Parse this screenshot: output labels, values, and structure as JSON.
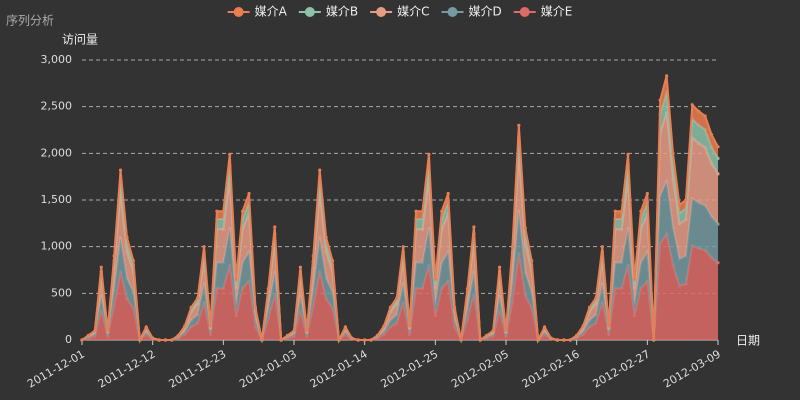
{
  "chart_data": {
    "type": "stacked-area",
    "title": "序列分析",
    "y_label": "访问量",
    "x_label": "日期",
    "categories": [
      "2011-12-01",
      null,
      null,
      null,
      null,
      null,
      null,
      null,
      null,
      null,
      null,
      "2011-12-12",
      null,
      null,
      null,
      null,
      null,
      null,
      null,
      null,
      null,
      null,
      "2011-12-23",
      null,
      null,
      null,
      null,
      null,
      null,
      null,
      null,
      null,
      null,
      "2012-01-03",
      null,
      null,
      null,
      null,
      null,
      null,
      null,
      null,
      null,
      null,
      "2012-01-14",
      null,
      null,
      null,
      null,
      null,
      null,
      null,
      null,
      null,
      null,
      "2012-01-25",
      null,
      null,
      null,
      null,
      null,
      null,
      null,
      null,
      null,
      null,
      "2012-02-05",
      null,
      null,
      null,
      null,
      null,
      null,
      null,
      null,
      null,
      null,
      "2012-02-16",
      null,
      null,
      null,
      null,
      null,
      null,
      null,
      null,
      null,
      null,
      "2012-02-27",
      null,
      null,
      null,
      null,
      null,
      null,
      null,
      null,
      null,
      null,
      "2012-03-09"
    ],
    "series": [
      {
        "name": "媒介A",
        "color": "#ea7e53",
        "values": [
          0,
          3,
          6,
          47,
          6,
          54,
          109,
          66,
          51,
          0,
          8,
          1,
          0,
          0,
          0,
          3,
          9,
          21,
          27,
          60,
          9,
          83,
          83,
          119,
          39,
          83,
          94,
          21,
          0,
          33,
          73,
          0,
          3,
          6,
          47,
          6,
          54,
          109,
          66,
          51,
          0,
          8,
          1,
          0,
          0,
          0,
          3,
          9,
          21,
          27,
          60,
          9,
          83,
          83,
          119,
          39,
          83,
          94,
          21,
          0,
          33,
          73,
          0,
          3,
          6,
          47,
          6,
          60,
          138,
          72,
          51,
          0,
          8,
          1,
          0,
          0,
          0,
          3,
          9,
          21,
          27,
          60,
          9,
          83,
          83,
          119,
          39,
          83,
          94,
          0,
          154,
          170,
          120,
          87,
          90,
          151,
          147,
          144,
          132,
          124
        ]
      },
      {
        "name": "媒介B",
        "color": "#8dc1a9",
        "values": [
          0,
          4,
          8,
          62,
          8,
          72,
          146,
          88,
          68,
          0,
          11,
          2,
          0,
          0,
          0,
          4,
          12,
          28,
          36,
          80,
          12,
          110,
          110,
          159,
          52,
          110,
          126,
          28,
          0,
          44,
          97,
          0,
          4,
          8,
          62,
          8,
          72,
          146,
          88,
          68,
          0,
          11,
          2,
          0,
          0,
          0,
          4,
          12,
          28,
          36,
          80,
          12,
          110,
          110,
          159,
          52,
          110,
          126,
          28,
          0,
          44,
          97,
          0,
          4,
          8,
          62,
          8,
          80,
          184,
          96,
          68,
          0,
          11,
          2,
          0,
          0,
          0,
          4,
          12,
          28,
          36,
          80,
          12,
          110,
          110,
          159,
          52,
          110,
          126,
          0,
          206,
          226,
          160,
          116,
          120,
          202,
          196,
          192,
          176,
          166
        ]
      },
      {
        "name": "媒介C",
        "color": "#e69d87",
        "values": [
          0,
          13,
          26,
          203,
          26,
          234,
          473,
          286,
          221,
          0,
          36,
          5,
          0,
          0,
          0,
          13,
          39,
          91,
          117,
          260,
          39,
          359,
          359,
          517,
          169,
          359,
          408,
          91,
          0,
          143,
          315,
          0,
          13,
          26,
          203,
          26,
          234,
          473,
          286,
          221,
          0,
          36,
          5,
          0,
          0,
          0,
          13,
          39,
          91,
          117,
          260,
          39,
          359,
          359,
          517,
          169,
          359,
          408,
          91,
          0,
          143,
          315,
          0,
          13,
          26,
          203,
          26,
          260,
          598,
          312,
          221,
          0,
          36,
          5,
          0,
          0,
          0,
          13,
          39,
          91,
          117,
          260,
          39,
          359,
          359,
          517,
          169,
          359,
          408,
          0,
          668,
          736,
          520,
          377,
          390,
          655,
          637,
          624,
          572,
          538
        ]
      },
      {
        "name": "媒介D",
        "color": "#759aa0",
        "values": [
          0,
          10,
          20,
          156,
          20,
          180,
          364,
          220,
          170,
          0,
          28,
          4,
          0,
          0,
          0,
          10,
          30,
          70,
          90,
          200,
          30,
          276,
          276,
          398,
          130,
          276,
          314,
          70,
          0,
          110,
          242,
          0,
          10,
          20,
          156,
          20,
          180,
          364,
          220,
          170,
          0,
          28,
          4,
          0,
          0,
          0,
          10,
          30,
          70,
          90,
          200,
          30,
          276,
          276,
          398,
          130,
          276,
          314,
          70,
          0,
          110,
          242,
          0,
          10,
          20,
          156,
          20,
          200,
          460,
          240,
          170,
          0,
          28,
          4,
          0,
          0,
          0,
          10,
          30,
          70,
          90,
          200,
          30,
          276,
          276,
          398,
          130,
          276,
          314,
          0,
          514,
          566,
          400,
          290,
          300,
          504,
          490,
          480,
          440,
          414
        ]
      },
      {
        "name": "媒介E",
        "color": "#dd6b66",
        "values": [
          0,
          20,
          40,
          312,
          40,
          360,
          728,
          440,
          340,
          0,
          57,
          8,
          0,
          0,
          0,
          20,
          60,
          140,
          180,
          400,
          60,
          552,
          552,
          796,
          260,
          552,
          628,
          140,
          0,
          220,
          484,
          0,
          20,
          40,
          312,
          40,
          360,
          728,
          440,
          340,
          0,
          57,
          8,
          0,
          0,
          0,
          20,
          60,
          140,
          180,
          400,
          60,
          552,
          552,
          796,
          260,
          552,
          628,
          140,
          0,
          220,
          484,
          0,
          20,
          40,
          312,
          40,
          400,
          920,
          480,
          340,
          0,
          57,
          8,
          0,
          0,
          0,
          20,
          60,
          140,
          180,
          400,
          60,
          552,
          552,
          796,
          260,
          552,
          628,
          0,
          1028,
          1132,
          800,
          580,
          600,
          1008,
          980,
          960,
          880,
          828
        ]
      }
    ],
    "ylim": [
      0,
      3000
    ],
    "yticks": [
      0,
      500,
      {
        "value": 1000,
        "label": "1,000"
      },
      {
        "value": 1500,
        "label": "1,500"
      },
      {
        "value": 2000,
        "label": "2,000"
      },
      {
        "value": 2500,
        "label": "2,500"
      },
      {
        "value": 3000,
        "label": "3,000"
      }
    ],
    "grid": true,
    "stacked": true,
    "legend": "top"
  }
}
